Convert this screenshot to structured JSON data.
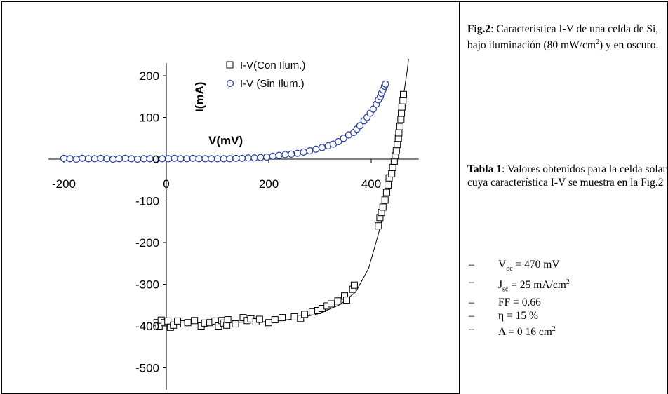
{
  "chart_data": {
    "type": "scatter",
    "xlabel": "V(mV)",
    "ylabel": "I(mA)",
    "xlim": [
      -230,
      490
    ],
    "ylim": [
      -540,
      230
    ],
    "x_ticks": [
      -200,
      0,
      200,
      400
    ],
    "y_ticks": [
      200,
      100,
      0,
      -100,
      -200,
      -300,
      -400,
      -500
    ],
    "legend_position": "top-center",
    "series": [
      {
        "name": "I-V(Con Ilum.)",
        "marker": "square",
        "color": "#000000",
        "points": [
          [
            -18,
            -392
          ],
          [
            -14,
            -400
          ],
          [
            -10,
            -386
          ],
          [
            -4,
            -392
          ],
          [
            3,
            -388
          ],
          [
            8,
            -403
          ],
          [
            14,
            -398
          ],
          [
            22,
            -388
          ],
          [
            34,
            -395
          ],
          [
            42,
            -392
          ],
          [
            55,
            -387
          ],
          [
            68,
            -400
          ],
          [
            75,
            -393
          ],
          [
            85,
            -392
          ],
          [
            95,
            -388
          ],
          [
            102,
            -400
          ],
          [
            108,
            -387
          ],
          [
            112,
            -393
          ],
          [
            118,
            -398
          ],
          [
            120,
            -385
          ],
          [
            135,
            -395
          ],
          [
            150,
            -380
          ],
          [
            158,
            -387
          ],
          [
            165,
            -383
          ],
          [
            175,
            -390
          ],
          [
            182,
            -384
          ],
          [
            200,
            -392
          ],
          [
            212,
            -385
          ],
          [
            226,
            -380
          ],
          [
            250,
            -378
          ],
          [
            262,
            -382
          ],
          [
            270,
            -372
          ],
          [
            285,
            -366
          ],
          [
            296,
            -363
          ],
          [
            304,
            -358
          ],
          [
            314,
            -352
          ],
          [
            322,
            -347
          ],
          [
            335,
            -340
          ],
          [
            348,
            -328
          ],
          [
            352,
            -338
          ],
          [
            364,
            -312
          ],
          [
            367,
            -302
          ],
          [
            414,
            -160
          ],
          [
            417,
            -140
          ],
          [
            420,
            -128
          ],
          [
            423,
            -115
          ],
          [
            427,
            -98
          ],
          [
            430,
            -80
          ],
          [
            433,
            -62
          ],
          [
            435,
            -45
          ],
          [
            440,
            -35
          ],
          [
            442,
            -20
          ],
          [
            445,
            -5
          ],
          [
            447,
            8
          ],
          [
            449,
            20
          ],
          [
            451,
            35
          ],
          [
            453,
            50
          ],
          [
            454,
            63
          ],
          [
            456,
            78
          ],
          [
            458,
            95
          ],
          [
            459,
            110
          ],
          [
            460,
            125
          ],
          [
            462,
            140
          ],
          [
            463,
            155
          ]
        ],
        "fit_curve": [
          [
            -20,
            -395
          ],
          [
            100,
            -392
          ],
          [
            200,
            -390
          ],
          [
            250,
            -383
          ],
          [
            300,
            -370
          ],
          [
            340,
            -348
          ],
          [
            370,
            -318
          ],
          [
            395,
            -262
          ],
          [
            415,
            -175
          ],
          [
            430,
            -95
          ],
          [
            440,
            -25
          ],
          [
            450,
            30
          ],
          [
            458,
            100
          ],
          [
            464,
            160
          ],
          [
            470,
            210
          ],
          [
            473,
            240
          ]
        ]
      },
      {
        "name": "I-V (Sin Ilum.)",
        "marker": "circle",
        "color": "#1f3a9a",
        "points": [
          [
            -200,
            2
          ],
          [
            -188,
            1
          ],
          [
            -176,
            0
          ],
          [
            -164,
            2
          ],
          [
            -152,
            1
          ],
          [
            -140,
            1
          ],
          [
            -128,
            2
          ],
          [
            -116,
            1
          ],
          [
            -104,
            0
          ],
          [
            -92,
            1
          ],
          [
            -80,
            2
          ],
          [
            -68,
            1
          ],
          [
            -56,
            0
          ],
          [
            -44,
            1
          ],
          [
            -32,
            1
          ],
          [
            -20,
            0
          ],
          [
            -8,
            1
          ],
          [
            4,
            1
          ],
          [
            16,
            2
          ],
          [
            28,
            1
          ],
          [
            40,
            1
          ],
          [
            52,
            2
          ],
          [
            64,
            1
          ],
          [
            76,
            1
          ],
          [
            88,
            1
          ],
          [
            100,
            1
          ],
          [
            112,
            1
          ],
          [
            124,
            1
          ],
          [
            136,
            2
          ],
          [
            148,
            2
          ],
          [
            160,
            3
          ],
          [
            172,
            3
          ],
          [
            184,
            4
          ],
          [
            196,
            5
          ],
          [
            208,
            7
          ],
          [
            220,
            9
          ],
          [
            232,
            11
          ],
          [
            244,
            12
          ],
          [
            256,
            14
          ],
          [
            268,
            17
          ],
          [
            280,
            20
          ],
          [
            292,
            24
          ],
          [
            304,
            28
          ],
          [
            316,
            32
          ],
          [
            326,
            36
          ],
          [
            336,
            42
          ],
          [
            346,
            50
          ],
          [
            356,
            58
          ],
          [
            366,
            64
          ],
          [
            372,
            72
          ],
          [
            378,
            80
          ],
          [
            386,
            92
          ],
          [
            392,
            100
          ],
          [
            398,
            110
          ],
          [
            404,
            120
          ],
          [
            410,
            132
          ],
          [
            414,
            142
          ],
          [
            418,
            150
          ],
          [
            420,
            158
          ],
          [
            423,
            166
          ],
          [
            426,
            175
          ],
          [
            428,
            180
          ]
        ]
      }
    ]
  },
  "captions": {
    "fig_label": "Fig.2",
    "fig_text_1": ": Característica I-V de una celda de Si, bajo iluminación (80 mW/cm",
    "fig_sup": "2",
    "fig_text_2": ") y en oscuro.",
    "table_label": "Tabla 1",
    "table_text": ": Valores obtenidos para la celda solar cuya característica I-V se muestra en la Fig.2"
  },
  "parameters": {
    "dash": "–",
    "voc_symbol": "V",
    "voc_sub": "oc",
    "voc_value": " = 470 mV",
    "jsc_symbol": "J",
    "jsc_sub": "sc",
    "jsc_value": " = 25 mA/cm",
    "jsc_sup": "2",
    "ff": "FF = 0.66",
    "eta": "η = 15 %",
    "area": "A = 0 16 cm",
    "area_sup": "2"
  }
}
